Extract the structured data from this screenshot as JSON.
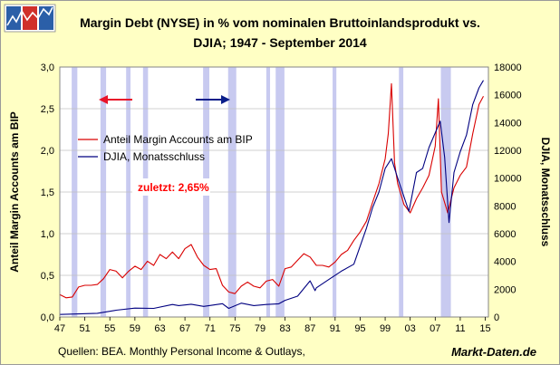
{
  "logo": {
    "icon": "chart-logo-icon",
    "colors": [
      "#2b5fa8",
      "#d0302a"
    ]
  },
  "chart_data": {
    "type": "line",
    "title": [
      "Margin Debt (NYSE) in % vom nominalen Bruttoinlandsprodukt vs.",
      "DJIA; 1947 - September 2014"
    ],
    "ylabel_left": "Anteil Margin Accounts am BIP",
    "ylabel_right": "DJIA, Monatsschluss",
    "xlim": [
      1947,
      2015.5
    ],
    "ylim_left": [
      0,
      3.0
    ],
    "ylim_right": [
      0,
      18000
    ],
    "x_tick_labels": [
      "47",
      "51",
      "55",
      "59",
      "63",
      "67",
      "71",
      "75",
      "79",
      "83",
      "87",
      "91",
      "95",
      "99",
      "03",
      "07",
      "11",
      "15"
    ],
    "y_left_tick_labels": [
      "0,0",
      "0,5",
      "1,0",
      "1,5",
      "2,0",
      "2,5",
      "3,0"
    ],
    "y_right_tick_labels": [
      "0",
      "2000",
      "4000",
      "6000",
      "8000",
      "10000",
      "12000",
      "14000",
      "16000",
      "18000"
    ],
    "y_left_ticks": [
      0,
      0.5,
      1.0,
      1.5,
      2.0,
      2.5,
      3.0
    ],
    "y_right_ticks": [
      0,
      2000,
      4000,
      6000,
      8000,
      10000,
      12000,
      14000,
      16000,
      18000
    ],
    "recessions": [
      [
        1948.9,
        1949.8
      ],
      [
        1953.5,
        1954.4
      ],
      [
        1957.6,
        1958.3
      ],
      [
        1960.3,
        1961.1
      ],
      [
        1969.9,
        1970.9
      ],
      [
        1973.9,
        1975.2
      ],
      [
        1980.0,
        1980.6
      ],
      [
        1981.5,
        1982.9
      ],
      [
        1990.6,
        1991.2
      ],
      [
        2001.2,
        2001.9
      ],
      [
        2007.9,
        2009.5
      ]
    ],
    "recession_color": "#c8caf0",
    "grid": true,
    "legend_position": "upper-left",
    "series": [
      {
        "name": "Anteil Margin Accounts am BIP",
        "axis": "left",
        "color": "#d90000",
        "x": [
          1947,
          1948,
          1949,
          1950,
          1951,
          1952,
          1953,
          1954,
          1955,
          1956,
          1957,
          1958,
          1959,
          1960,
          1961,
          1962,
          1963,
          1964,
          1965,
          1966,
          1967,
          1968,
          1969,
          1970,
          1971,
          1972,
          1973,
          1974,
          1975,
          1976,
          1977,
          1978,
          1979,
          1980,
          1981,
          1982,
          1983,
          1984,
          1985,
          1986,
          1987,
          1988,
          1989,
          1990,
          1991,
          1992,
          1993,
          1994,
          1995,
          1996,
          1997,
          1998,
          1999,
          1999.5,
          2000,
          2000.5,
          2001,
          2002,
          2003,
          2004,
          2005,
          2006,
          2007,
          2007.5,
          2008,
          2009,
          2010,
          2011,
          2012,
          2013,
          2014,
          2014.7
        ],
        "y": [
          0.27,
          0.23,
          0.24,
          0.36,
          0.38,
          0.38,
          0.39,
          0.46,
          0.57,
          0.55,
          0.47,
          0.55,
          0.61,
          0.57,
          0.67,
          0.62,
          0.75,
          0.7,
          0.78,
          0.7,
          0.82,
          0.87,
          0.72,
          0.62,
          0.57,
          0.58,
          0.38,
          0.3,
          0.28,
          0.37,
          0.42,
          0.37,
          0.35,
          0.43,
          0.45,
          0.37,
          0.58,
          0.6,
          0.68,
          0.76,
          0.72,
          0.62,
          0.62,
          0.6,
          0.66,
          0.75,
          0.8,
          0.92,
          1.02,
          1.15,
          1.38,
          1.6,
          1.9,
          2.2,
          2.8,
          1.85,
          1.6,
          1.35,
          1.25,
          1.42,
          1.55,
          1.7,
          2.05,
          2.62,
          1.5,
          1.25,
          1.55,
          1.7,
          1.8,
          2.2,
          2.55,
          2.65
        ]
      },
      {
        "name": "DJIA, Monatsschluss",
        "axis": "right",
        "color": "#000080",
        "x": [
          1947,
          1950,
          1953,
          1956,
          1959,
          1962,
          1965,
          1966,
          1968,
          1970,
          1973,
          1974,
          1976,
          1978,
          1980,
          1982,
          1983,
          1985,
          1987,
          1987.8,
          1988,
          1990,
          1992,
          1994,
          1996,
          1997,
          1998,
          1999,
          2000,
          2001,
          2002.8,
          2004,
          2005,
          2006,
          2007.8,
          2008.5,
          2009.2,
          2010,
          2011,
          2012,
          2013,
          2014,
          2014.7
        ],
        "y": [
          180,
          220,
          270,
          490,
          640,
          620,
          900,
          820,
          920,
          760,
          960,
          620,
          1000,
          820,
          900,
          950,
          1200,
          1500,
          2600,
          1900,
          2100,
          2700,
          3300,
          3800,
          6400,
          7900,
          9000,
          10700,
          11400,
          10000,
          7600,
          10400,
          10700,
          12200,
          14100,
          11500,
          6800,
          10400,
          11900,
          13100,
          15300,
          16500,
          17040
        ]
      }
    ],
    "legend": [
      {
        "label": "Anteil Margin Accounts am BIP",
        "color": "#d90000"
      },
      {
        "label": "DJIA, Monatsschluss",
        "color": "#000080"
      }
    ],
    "annotation": "zuletzt: 2,65%",
    "arrow_left_color": "#e8132a",
    "arrow_right_color": "#0a1e8a"
  },
  "footer": {
    "source": "Quellen: BEA. Monthly Personal Income & Outlays,",
    "brand": "Markt-Daten.de"
  }
}
